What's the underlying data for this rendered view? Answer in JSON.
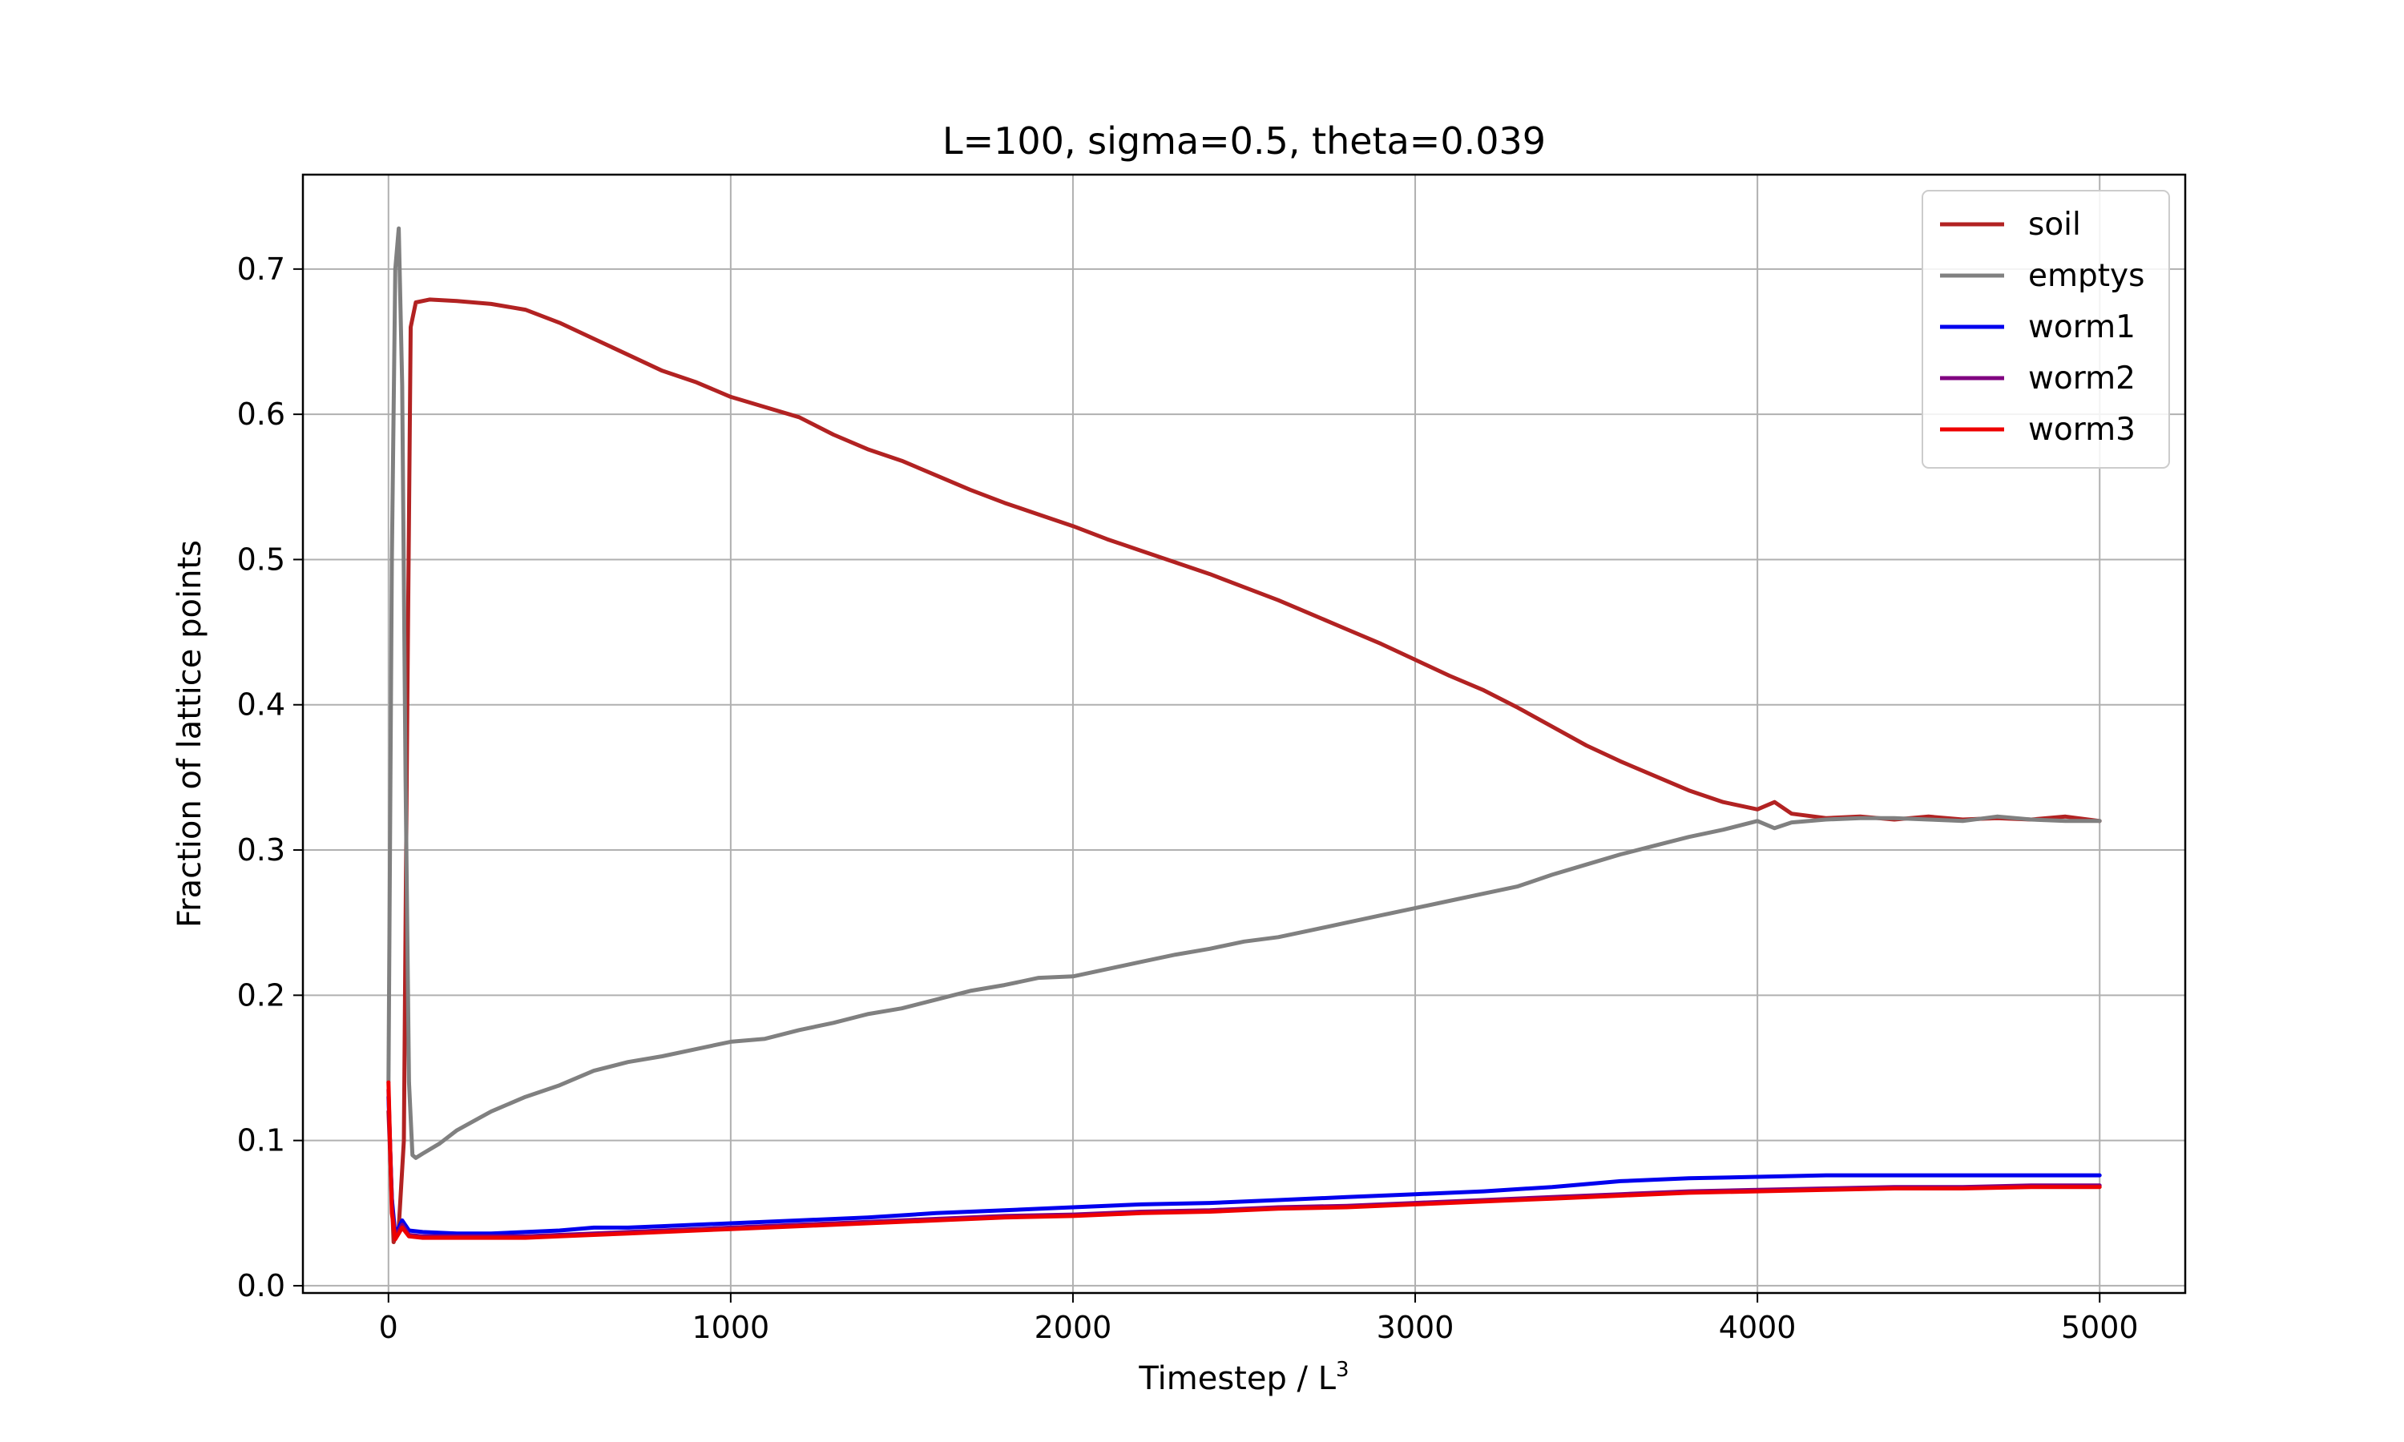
{
  "chart_data": {
    "type": "line",
    "title": "L=100, sigma=0.5, theta=0.039",
    "xlabel_text": "Timestep / L",
    "xlabel_sup": "3",
    "ylabel": "Fraction of lattice points",
    "xlim": [
      -250,
      5250
    ],
    "ylim": [
      -0.005,
      0.765
    ],
    "xticks": [
      0,
      1000,
      2000,
      3000,
      4000,
      5000
    ],
    "xtick_labels": [
      "0",
      "1000",
      "2000",
      "3000",
      "4000",
      "5000"
    ],
    "yticks": [
      0.0,
      0.1,
      0.2,
      0.3,
      0.4,
      0.5,
      0.6,
      0.7
    ],
    "ytick_labels": [
      "0.0",
      "0.1",
      "0.2",
      "0.3",
      "0.4",
      "0.5",
      "0.6",
      "0.7"
    ],
    "grid": true,
    "legend_position": "top-right",
    "series": [
      {
        "name": "soil",
        "color": "#b22222",
        "x": [
          0,
          15,
          30,
          45,
          55,
          65,
          80,
          120,
          200,
          300,
          400,
          500,
          600,
          700,
          800,
          900,
          1000,
          1100,
          1200,
          1300,
          1400,
          1500,
          1600,
          1700,
          1800,
          1900,
          2000,
          2100,
          2200,
          2300,
          2400,
          2500,
          2600,
          2700,
          2800,
          2900,
          3000,
          3100,
          3200,
          3300,
          3400,
          3500,
          3600,
          3700,
          3800,
          3900,
          4000,
          4050,
          4100,
          4200,
          4300,
          4400,
          4500,
          4600,
          4700,
          4800,
          4900,
          5000
        ],
        "y": [
          0.12,
          0.03,
          0.04,
          0.1,
          0.4,
          0.66,
          0.677,
          0.679,
          0.678,
          0.676,
          0.672,
          0.663,
          0.652,
          0.641,
          0.63,
          0.622,
          0.612,
          0.605,
          0.598,
          0.586,
          0.576,
          0.568,
          0.558,
          0.548,
          0.539,
          0.531,
          0.523,
          0.514,
          0.506,
          0.498,
          0.49,
          0.481,
          0.472,
          0.462,
          0.452,
          0.442,
          0.431,
          0.42,
          0.41,
          0.398,
          0.385,
          0.372,
          0.361,
          0.351,
          0.341,
          0.333,
          0.328,
          0.333,
          0.325,
          0.322,
          0.323,
          0.321,
          0.323,
          0.321,
          0.322,
          0.321,
          0.323,
          0.32
        ]
      },
      {
        "name": "emptys",
        "color": "#808080",
        "x": [
          0,
          10,
          20,
          30,
          40,
          50,
          60,
          70,
          80,
          100,
          150,
          200,
          300,
          400,
          500,
          600,
          700,
          800,
          900,
          1000,
          1100,
          1200,
          1300,
          1400,
          1500,
          1600,
          1700,
          1800,
          1900,
          2000,
          2100,
          2200,
          2300,
          2400,
          2500,
          2600,
          2700,
          2800,
          2900,
          3000,
          3100,
          3200,
          3300,
          3400,
          3500,
          3600,
          3700,
          3800,
          3900,
          4000,
          4050,
          4100,
          4200,
          4300,
          4400,
          4500,
          4600,
          4700,
          4800,
          4900,
          5000
        ],
        "y": [
          0.14,
          0.5,
          0.7,
          0.728,
          0.62,
          0.35,
          0.14,
          0.09,
          0.088,
          0.091,
          0.098,
          0.107,
          0.12,
          0.13,
          0.138,
          0.148,
          0.154,
          0.158,
          0.163,
          0.168,
          0.17,
          0.176,
          0.181,
          0.187,
          0.191,
          0.197,
          0.203,
          0.207,
          0.212,
          0.213,
          0.218,
          0.223,
          0.228,
          0.232,
          0.237,
          0.24,
          0.245,
          0.25,
          0.255,
          0.26,
          0.265,
          0.27,
          0.275,
          0.283,
          0.29,
          0.297,
          0.303,
          0.309,
          0.314,
          0.32,
          0.315,
          0.319,
          0.321,
          0.322,
          0.322,
          0.321,
          0.32,
          0.323,
          0.321,
          0.32,
          0.32
        ]
      },
      {
        "name": "worm1",
        "color": "#0000ee",
        "x": [
          0,
          10,
          20,
          30,
          40,
          60,
          100,
          200,
          300,
          400,
          500,
          600,
          700,
          800,
          900,
          1000,
          1200,
          1400,
          1600,
          1800,
          2000,
          2200,
          2400,
          2600,
          2800,
          3000,
          3200,
          3400,
          3600,
          3800,
          4000,
          4200,
          4400,
          4600,
          4800,
          5000
        ],
        "y": [
          0.13,
          0.06,
          0.035,
          0.04,
          0.045,
          0.038,
          0.037,
          0.036,
          0.036,
          0.037,
          0.038,
          0.04,
          0.04,
          0.041,
          0.042,
          0.043,
          0.045,
          0.047,
          0.05,
          0.052,
          0.054,
          0.056,
          0.057,
          0.059,
          0.061,
          0.063,
          0.065,
          0.068,
          0.072,
          0.074,
          0.075,
          0.076,
          0.076,
          0.076,
          0.076,
          0.076
        ]
      },
      {
        "name": "worm2",
        "color": "#800080",
        "x": [
          0,
          10,
          20,
          30,
          40,
          60,
          100,
          200,
          300,
          400,
          500,
          600,
          700,
          800,
          900,
          1000,
          1200,
          1400,
          1600,
          1800,
          2000,
          2200,
          2400,
          2600,
          2800,
          3000,
          3200,
          3400,
          3600,
          3800,
          4000,
          4200,
          4400,
          4600,
          4800,
          5000
        ],
        "y": [
          0.135,
          0.055,
          0.033,
          0.038,
          0.042,
          0.035,
          0.034,
          0.034,
          0.034,
          0.034,
          0.035,
          0.036,
          0.037,
          0.038,
          0.039,
          0.04,
          0.042,
          0.044,
          0.046,
          0.048,
          0.049,
          0.051,
          0.052,
          0.054,
          0.055,
          0.057,
          0.059,
          0.061,
          0.063,
          0.065,
          0.066,
          0.067,
          0.068,
          0.068,
          0.069,
          0.069
        ]
      },
      {
        "name": "worm3",
        "color": "#ee0000",
        "x": [
          0,
          10,
          20,
          30,
          40,
          60,
          100,
          200,
          300,
          400,
          500,
          600,
          700,
          800,
          900,
          1000,
          1200,
          1400,
          1600,
          1800,
          2000,
          2200,
          2400,
          2600,
          2800,
          3000,
          3200,
          3400,
          3600,
          3800,
          4000,
          4200,
          4400,
          4600,
          4800,
          5000
        ],
        "y": [
          0.14,
          0.05,
          0.032,
          0.036,
          0.04,
          0.034,
          0.033,
          0.033,
          0.033,
          0.033,
          0.034,
          0.035,
          0.036,
          0.037,
          0.038,
          0.039,
          0.041,
          0.043,
          0.045,
          0.047,
          0.048,
          0.05,
          0.051,
          0.053,
          0.054,
          0.056,
          0.058,
          0.06,
          0.062,
          0.064,
          0.065,
          0.066,
          0.067,
          0.067,
          0.068,
          0.068
        ]
      }
    ]
  }
}
